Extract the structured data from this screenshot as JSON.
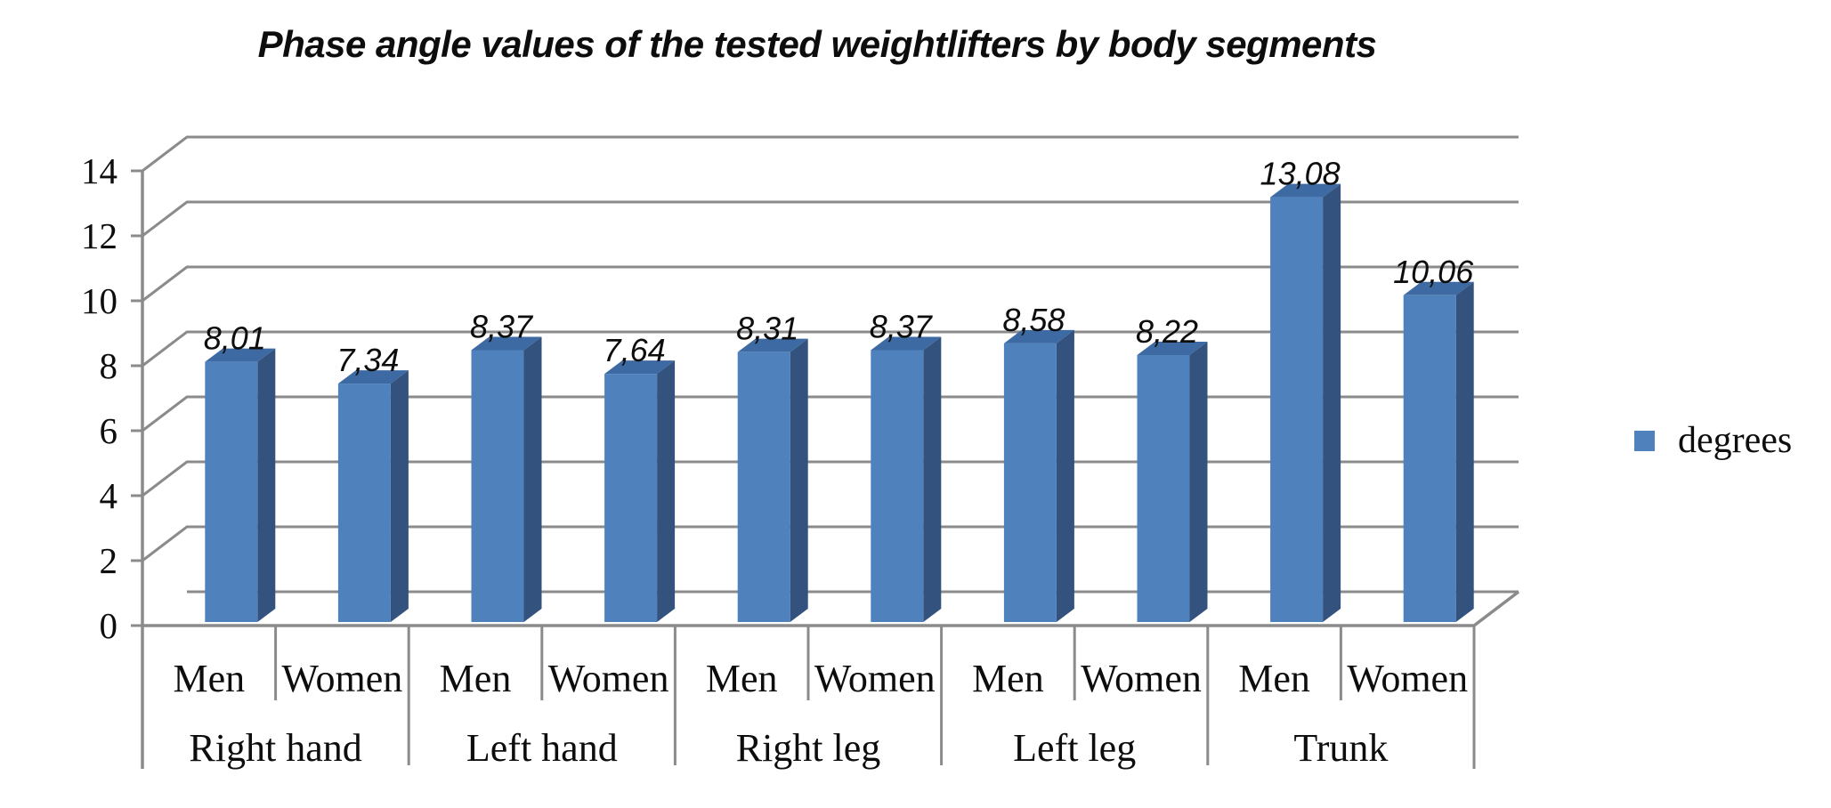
{
  "title": "Phase angle values of the tested weightlifters by body segments",
  "legend": {
    "label": "degrees"
  },
  "colors": {
    "bar_front": "#4f81bd",
    "bar_top": "#3e6aa3",
    "bar_side": "#33537e",
    "grid": "#8b8b8b",
    "axis": "#898989",
    "text": "#0d0d0d"
  },
  "chart_data": {
    "type": "bar",
    "style": "3d-column",
    "title": "Phase angle values of the tested weightlifters by body segments",
    "groups": [
      "Right hand",
      "Left hand",
      "Right leg",
      "Left leg",
      "Trunk"
    ],
    "sub_categories": [
      "Men",
      "Women"
    ],
    "values": [
      8.01,
      7.34,
      8.37,
      7.64,
      8.31,
      8.37,
      8.58,
      8.22,
      13.08,
      10.06
    ],
    "value_labels": [
      "8,01",
      "7,34",
      "8,37",
      "7,64",
      "8,31",
      "8,37",
      "8,58",
      "8,22",
      "13,08",
      "10,06"
    ],
    "bars": [
      {
        "group": "Right hand",
        "category": "Men",
        "value": 8.01,
        "label": "8,01"
      },
      {
        "group": "Right hand",
        "category": "Women",
        "value": 7.34,
        "label": "7,34"
      },
      {
        "group": "Left hand",
        "category": "Men",
        "value": 8.37,
        "label": "8,37"
      },
      {
        "group": "Left hand",
        "category": "Women",
        "value": 7.64,
        "label": "7,64"
      },
      {
        "group": "Right leg",
        "category": "Men",
        "value": 8.31,
        "label": "8,31"
      },
      {
        "group": "Right leg",
        "category": "Women",
        "value": 8.37,
        "label": "8,37"
      },
      {
        "group": "Left leg",
        "category": "Men",
        "value": 8.58,
        "label": "8,58"
      },
      {
        "group": "Left leg",
        "category": "Women",
        "value": 8.22,
        "label": "8,22"
      },
      {
        "group": "Trunk",
        "category": "Men",
        "value": 13.08,
        "label": "13,08"
      },
      {
        "group": "Trunk",
        "category": "Women",
        "value": 10.06,
        "label": "10,06"
      }
    ],
    "y_ticks": [
      0,
      2,
      4,
      6,
      8,
      10,
      12,
      14
    ],
    "ylim": [
      0,
      14
    ],
    "xlabel": "",
    "ylabel": "",
    "grid": true,
    "legend_entries": [
      "degrees"
    ],
    "legend_position": "right"
  }
}
